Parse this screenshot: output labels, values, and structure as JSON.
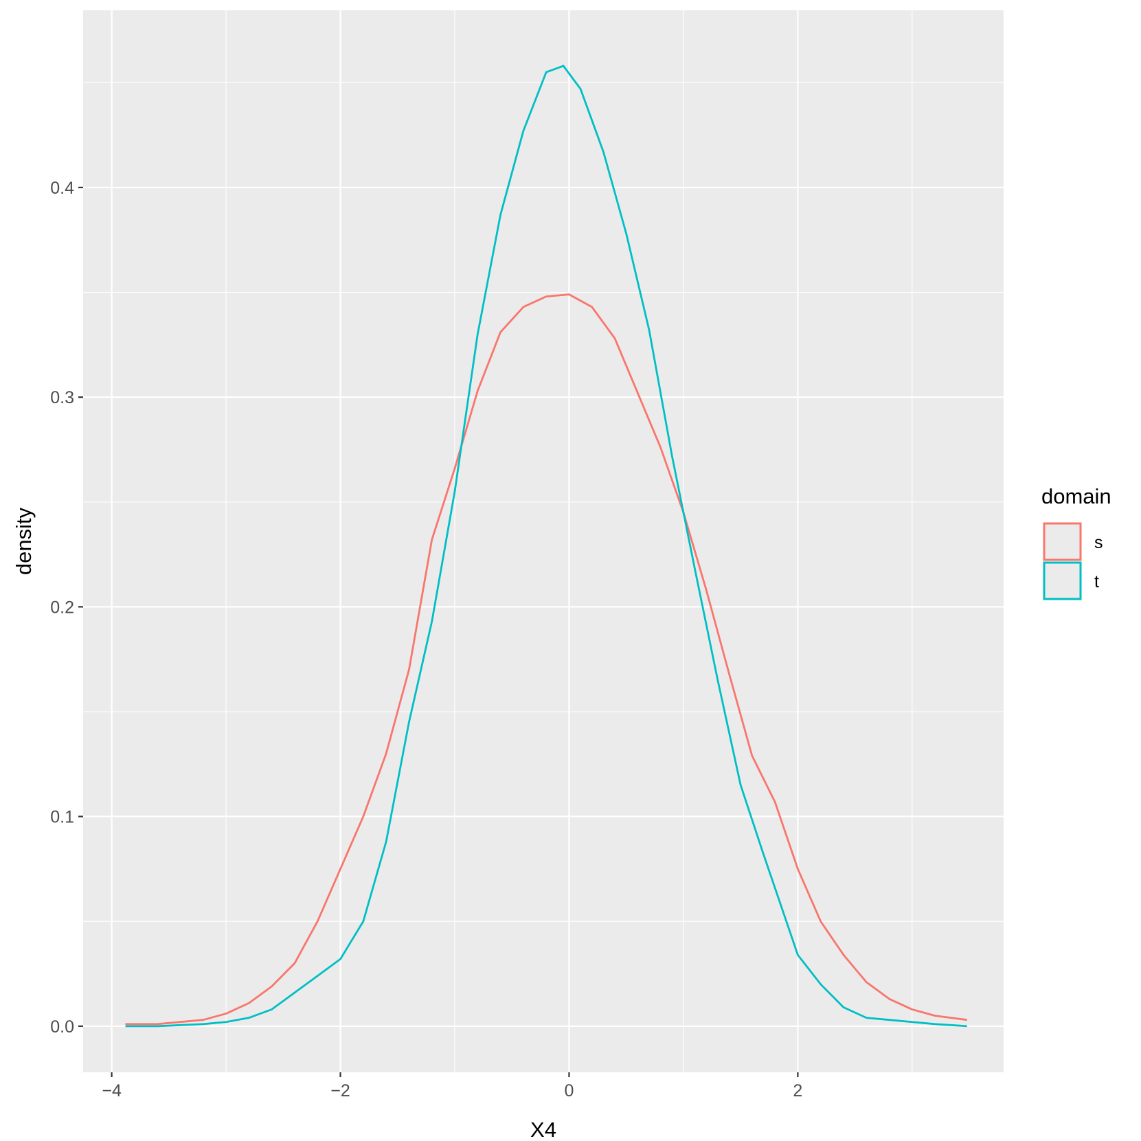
{
  "chart_data": {
    "type": "line",
    "title": "",
    "xlabel": "X4",
    "ylabel": "density",
    "xlim": [
      -4.25,
      3.8
    ],
    "ylim": [
      -0.022,
      0.4845
    ],
    "x_ticks": [
      -4,
      -2,
      0,
      2
    ],
    "x_tick_labels": [
      "−4",
      "−2",
      "0",
      "2"
    ],
    "x_minor_ticks": [
      -3,
      -1,
      1,
      3
    ],
    "y_ticks": [
      0.0,
      0.1,
      0.2,
      0.3,
      0.4
    ],
    "y_tick_labels": [
      "0.0",
      "0.1",
      "0.2",
      "0.3",
      "0.4"
    ],
    "y_minor_ticks": [
      0.05,
      0.15,
      0.25,
      0.35,
      0.45
    ],
    "grid": true,
    "legend": {
      "title": "domain",
      "position": "right"
    },
    "colors": {
      "panel": "#ebebeb",
      "grid": "#ffffff",
      "tick": "#333333"
    },
    "series": [
      {
        "name": "s",
        "color": "#F8766D",
        "points": [
          [
            -3.88,
            0.001
          ],
          [
            -3.6,
            0.001
          ],
          [
            -3.2,
            0.003
          ],
          [
            -3.0,
            0.006
          ],
          [
            -2.8,
            0.011
          ],
          [
            -2.6,
            0.019
          ],
          [
            -2.4,
            0.03
          ],
          [
            -2.2,
            0.05
          ],
          [
            -2.0,
            0.075
          ],
          [
            -1.8,
            0.1
          ],
          [
            -1.6,
            0.13
          ],
          [
            -1.4,
            0.17
          ],
          [
            -1.2,
            0.232
          ],
          [
            -1.0,
            0.266
          ],
          [
            -0.8,
            0.303
          ],
          [
            -0.6,
            0.331
          ],
          [
            -0.4,
            0.343
          ],
          [
            -0.2,
            0.348
          ],
          [
            0.0,
            0.349
          ],
          [
            0.2,
            0.343
          ],
          [
            0.4,
            0.328
          ],
          [
            0.6,
            0.302
          ],
          [
            0.8,
            0.276
          ],
          [
            1.0,
            0.245
          ],
          [
            1.2,
            0.208
          ],
          [
            1.4,
            0.168
          ],
          [
            1.6,
            0.129
          ],
          [
            1.8,
            0.107
          ],
          [
            2.0,
            0.075
          ],
          [
            2.2,
            0.05
          ],
          [
            2.4,
            0.034
          ],
          [
            2.6,
            0.021
          ],
          [
            2.8,
            0.013
          ],
          [
            3.0,
            0.008
          ],
          [
            3.2,
            0.005
          ],
          [
            3.48,
            0.003
          ]
        ]
      },
      {
        "name": "t",
        "color": "#00BFC4",
        "points": [
          [
            -3.88,
            0.0
          ],
          [
            -3.6,
            0.0
          ],
          [
            -3.2,
            0.001
          ],
          [
            -3.0,
            0.002
          ],
          [
            -2.8,
            0.004
          ],
          [
            -2.6,
            0.008
          ],
          [
            -2.4,
            0.016
          ],
          [
            -2.2,
            0.024
          ],
          [
            -2.0,
            0.032
          ],
          [
            -1.8,
            0.05
          ],
          [
            -1.6,
            0.088
          ],
          [
            -1.4,
            0.145
          ],
          [
            -1.2,
            0.193
          ],
          [
            -1.0,
            0.255
          ],
          [
            -0.8,
            0.33
          ],
          [
            -0.6,
            0.387
          ],
          [
            -0.4,
            0.427
          ],
          [
            -0.2,
            0.455
          ],
          [
            -0.05,
            0.458
          ],
          [
            0.1,
            0.447
          ],
          [
            0.3,
            0.417
          ],
          [
            0.5,
            0.378
          ],
          [
            0.7,
            0.332
          ],
          [
            0.9,
            0.272
          ],
          [
            1.1,
            0.218
          ],
          [
            1.3,
            0.165
          ],
          [
            1.5,
            0.115
          ],
          [
            1.7,
            0.082
          ],
          [
            1.9,
            0.05
          ],
          [
            2.0,
            0.034
          ],
          [
            2.2,
            0.02
          ],
          [
            2.4,
            0.009
          ],
          [
            2.6,
            0.004
          ],
          [
            2.8,
            0.003
          ],
          [
            3.0,
            0.002
          ],
          [
            3.2,
            0.001
          ],
          [
            3.48,
            0.0
          ]
        ]
      }
    ]
  }
}
